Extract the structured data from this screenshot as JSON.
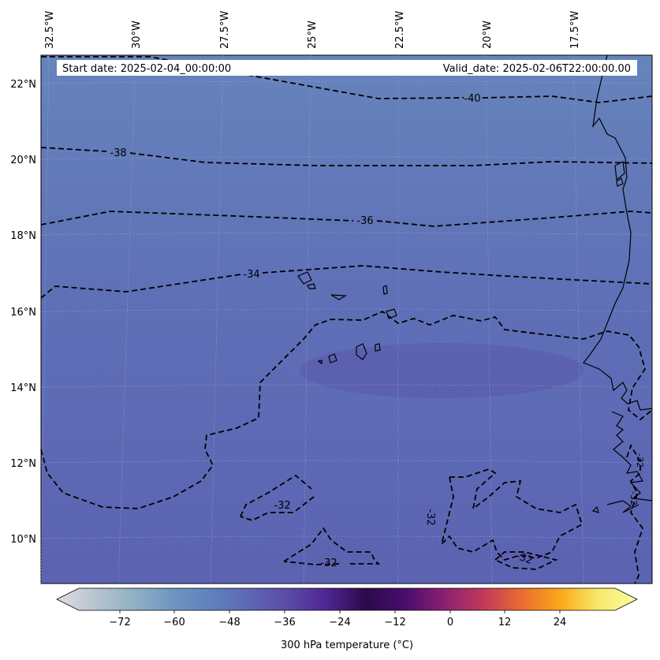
{
  "header": {
    "start_date": "Start date: 2025-02-04_00:00:00",
    "valid_date": "Valid_date: 2025-02-06T22:00:00.00"
  },
  "longitude_labels": [
    "32.5°W",
    "30°W",
    "27.5°W",
    "25°W",
    "22.5°W",
    "20°W",
    "17.5°W"
  ],
  "latitude_labels": [
    "22°N",
    "20°N",
    "18°N",
    "16°N",
    "14°N",
    "12°N",
    "10°N"
  ],
  "contour_labels": [
    "-40",
    "-38",
    "-36",
    "-34",
    "-32",
    "-32",
    "-32",
    "-32",
    "-32",
    "-32"
  ],
  "colorbar": {
    "tick_labels": [
      "−72",
      "−60",
      "−48",
      "−36",
      "−24",
      "−12",
      "0",
      "12",
      "24"
    ],
    "label": "300 hPa temperature (°C)",
    "colors": [
      "#e2dbe2",
      "#b7c4cf",
      "#8fb1c4",
      "#6f96c2",
      "#6080bb",
      "#5d66b3",
      "#5b4aa7",
      "#4d2590",
      "#2c0a4a",
      "#4a0d6b",
      "#8a1f72",
      "#c0385c",
      "#ea6a30",
      "#fba818",
      "#f7e86a",
      "#fcfca2"
    ]
  },
  "field_colors": {
    "north": "#6684bc",
    "mid": "#5f70b7",
    "south": "#5c63b2",
    "warm_patch": "#5a5aaa"
  }
}
